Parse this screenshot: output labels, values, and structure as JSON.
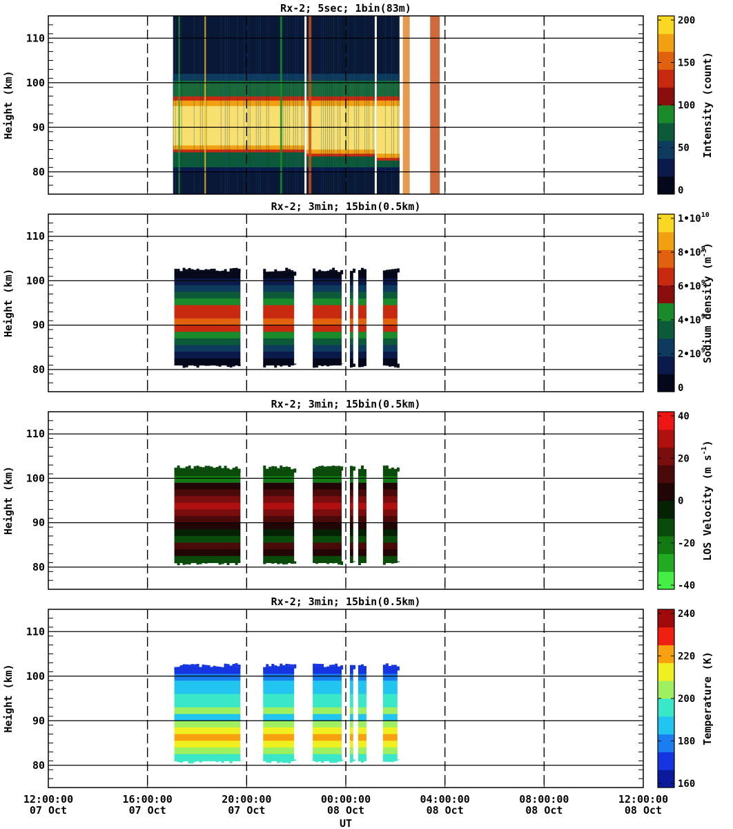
{
  "figure": {
    "x_axis_label": "UT",
    "x_ticks": [
      {
        "time": "12:00:00",
        "date": "07 Oct",
        "hours": 0
      },
      {
        "time": "16:00:00",
        "date": "07 Oct",
        "hours": 4
      },
      {
        "time": "20:00:00",
        "date": "07 Oct",
        "hours": 8
      },
      {
        "time": "00:00:00",
        "date": "08 Oct",
        "hours": 12
      },
      {
        "time": "04:00:00",
        "date": "08 Oct",
        "hours": 16
      },
      {
        "time": "08:00:00",
        "date": "08 Oct",
        "hours": 20
      },
      {
        "time": "12:00:00",
        "date": "08 Oct",
        "hours": 24
      }
    ]
  },
  "chart_data": [
    {
      "type": "heatmap",
      "title": "Rx-2;  5sec; 1bin(83m)",
      "ylabel": "Height (km)",
      "yticks": [
        80,
        90,
        100,
        110
      ],
      "ylim": [
        75,
        115
      ],
      "xlim_hours_after_start": [
        0,
        24
      ],
      "data_time_ranges_utc": [
        [
          "17:02",
          "22:20"
        ],
        [
          "22:25",
          "01:10"
        ],
        [
          "01:15",
          "02:10"
        ]
      ],
      "layer_km": {
        "bottom": 81,
        "peak_top": 96,
        "peak_bottom": 85,
        "top": 102
      },
      "colorbar": {
        "label": "Intensity (count)",
        "ticks": [
          "0",
          "50",
          "100",
          "150",
          "200"
        ],
        "colors": [
          "#05081a",
          "#0a1a4a",
          "#0e3a5e",
          "#0d5a3a",
          "#1a8a2a",
          "#8a0e0e",
          "#c82a10",
          "#e0620e",
          "#f0a010",
          "#f8d822"
        ]
      }
    },
    {
      "type": "heatmap",
      "title": "Rx-2; 3min; 15bin(0.5km)",
      "ylabel": "Height (km)",
      "yticks": [
        80,
        90,
        100,
        110
      ],
      "ylim": [
        75,
        115
      ],
      "xlim_hours_after_start": [
        0,
        24
      ],
      "data_time_ranges_utc": [
        [
          "17:05",
          "19:45"
        ],
        [
          "20:40",
          "21:55"
        ],
        [
          "22:40",
          "23:50"
        ],
        [
          "00:10",
          "00:18"
        ],
        [
          "00:30",
          "00:50"
        ],
        [
          "01:30",
          "02:05"
        ]
      ],
      "layer_km": {
        "bottom": 81,
        "peak_top": 94,
        "peak_bottom": 87,
        "top": 102
      },
      "colorbar": {
        "label": "Sodium density (m",
        "label_sup": "-3",
        "label_end": ")",
        "ticks": [
          "0",
          "2•10",
          "4•10",
          "6•10",
          "8•10",
          "1•10"
        ],
        "tick_sups": [
          "",
          "9",
          "9",
          "9",
          "9",
          "10"
        ],
        "colors": [
          "#05081a",
          "#0a1a4a",
          "#0e3a5e",
          "#0d5a3a",
          "#1a8a2a",
          "#8a0e0e",
          "#c82a10",
          "#e0620e",
          "#f0a010",
          "#f8d822"
        ]
      }
    },
    {
      "type": "heatmap",
      "title": "Rx-2; 3min; 15bin(0.5km)",
      "ylabel": "Height (km)",
      "yticks": [
        80,
        90,
        100,
        110
      ],
      "ylim": [
        75,
        115
      ],
      "xlim_hours_after_start": [
        0,
        24
      ],
      "data_time_ranges_utc": [
        [
          "17:05",
          "19:45"
        ],
        [
          "20:40",
          "21:55"
        ],
        [
          "22:40",
          "23:50"
        ],
        [
          "00:10",
          "00:18"
        ],
        [
          "00:30",
          "00:50"
        ],
        [
          "01:30",
          "02:05"
        ]
      ],
      "layer_km": {
        "bottom": 81,
        "top": 102
      },
      "colorbar": {
        "label": "LOS Velocity (m s",
        "label_sup": "-1",
        "label_end": ")",
        "ticks": [
          "-40",
          "-20",
          "0",
          "20",
          "40"
        ],
        "colors": [
          "#44ee44",
          "#22aa22",
          "#137a13",
          "#0a4a0a",
          "#052205",
          "#220505",
          "#4a0a0a",
          "#7a0e0e",
          "#b01010",
          "#ee1515"
        ]
      }
    },
    {
      "type": "heatmap",
      "title": "Rx-2; 3min; 15bin(0.5km)",
      "ylabel": "Height (km)",
      "yticks": [
        80,
        90,
        100,
        110
      ],
      "ylim": [
        75,
        115
      ],
      "xlim_hours_after_start": [
        0,
        24
      ],
      "data_time_ranges_utc": [
        [
          "17:05",
          "19:45"
        ],
        [
          "20:40",
          "21:55"
        ],
        [
          "22:40",
          "23:50"
        ],
        [
          "00:10",
          "00:18"
        ],
        [
          "00:30",
          "00:50"
        ],
        [
          "01:30",
          "02:05"
        ]
      ],
      "layer_km": {
        "bottom": 81,
        "top": 102
      },
      "colorbar": {
        "label": "Temperature (K)",
        "ticks": [
          "160",
          "180",
          "200",
          "220",
          "240"
        ],
        "colors": [
          "#0a1a9a",
          "#1535e0",
          "#1a7ef0",
          "#22c4f0",
          "#3ae8c8",
          "#9ef060",
          "#f0f020",
          "#f8a010",
          "#f02010",
          "#a00a0a"
        ]
      }
    }
  ]
}
